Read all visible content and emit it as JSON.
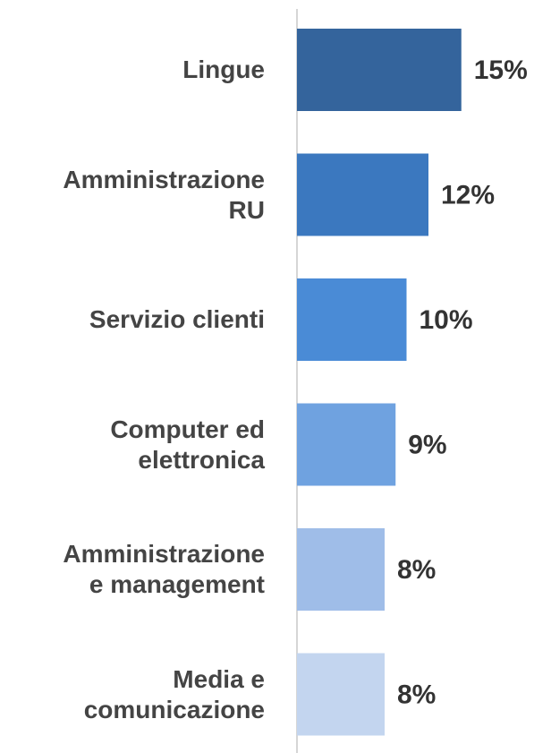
{
  "chart_data": {
    "type": "bar",
    "orientation": "horizontal",
    "categories": [
      "Lingue",
      "Amministrazione\nRU",
      "Servizio clienti",
      "Computer ed\nelettronica",
      "Amministrazione\ne management",
      "Media e\ncomunicazione"
    ],
    "values": [
      15,
      12,
      10,
      9,
      8,
      8
    ],
    "value_labels": [
      "15%",
      "12%",
      "10%",
      "9%",
      "8%",
      "8%"
    ],
    "colors": [
      "#34649c",
      "#3b78bf",
      "#4a8bd6",
      "#6fa2e0",
      "#9fbde8",
      "#c3d5ef"
    ],
    "xlim": [
      0,
      20
    ]
  }
}
